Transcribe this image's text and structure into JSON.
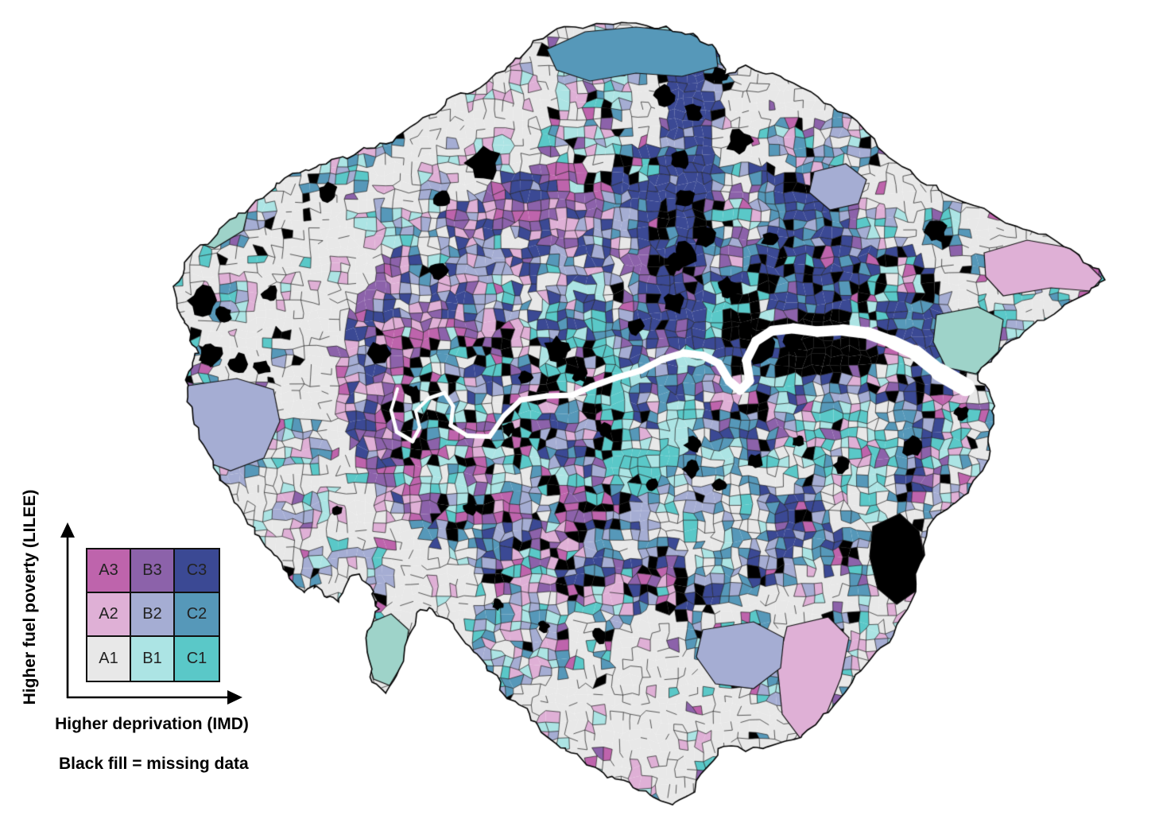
{
  "legend": {
    "y_axis_label": "Higher fuel poverty (LILEE)",
    "x_axis_label": "Higher deprivation (IMD)",
    "note": "Black fill = missing data",
    "rows": [
      [
        {
          "id": "A3",
          "color": "#be64ac"
        },
        {
          "id": "B3",
          "color": "#8c62aa"
        },
        {
          "id": "C3",
          "color": "#3b4994"
        }
      ],
      [
        {
          "id": "A2",
          "color": "#dfb0d6"
        },
        {
          "id": "B2",
          "color": "#a5add3"
        },
        {
          "id": "C2",
          "color": "#5698b9"
        }
      ],
      [
        {
          "id": "A1",
          "color": "#e8e8e8"
        },
        {
          "id": "B1",
          "color": "#ace4e4"
        },
        {
          "id": "C1",
          "color": "#5ac8c8"
        }
      ]
    ]
  },
  "map": {
    "palette": {
      "A1": "#e8e8e8",
      "B1": "#ace4e4",
      "C1": "#5ac8c8",
      "A2": "#dfb0d6",
      "B2": "#a5add3",
      "C2": "#5698b9",
      "A3": "#be64ac",
      "B3": "#8c62aa",
      "C3": "#3b4994"
    },
    "seafoam": "#9ed3c9",
    "missing_color": "#000000",
    "river_color": "#ffffff",
    "boundary_color": "#000000",
    "cell_border_color": "#141414"
  }
}
